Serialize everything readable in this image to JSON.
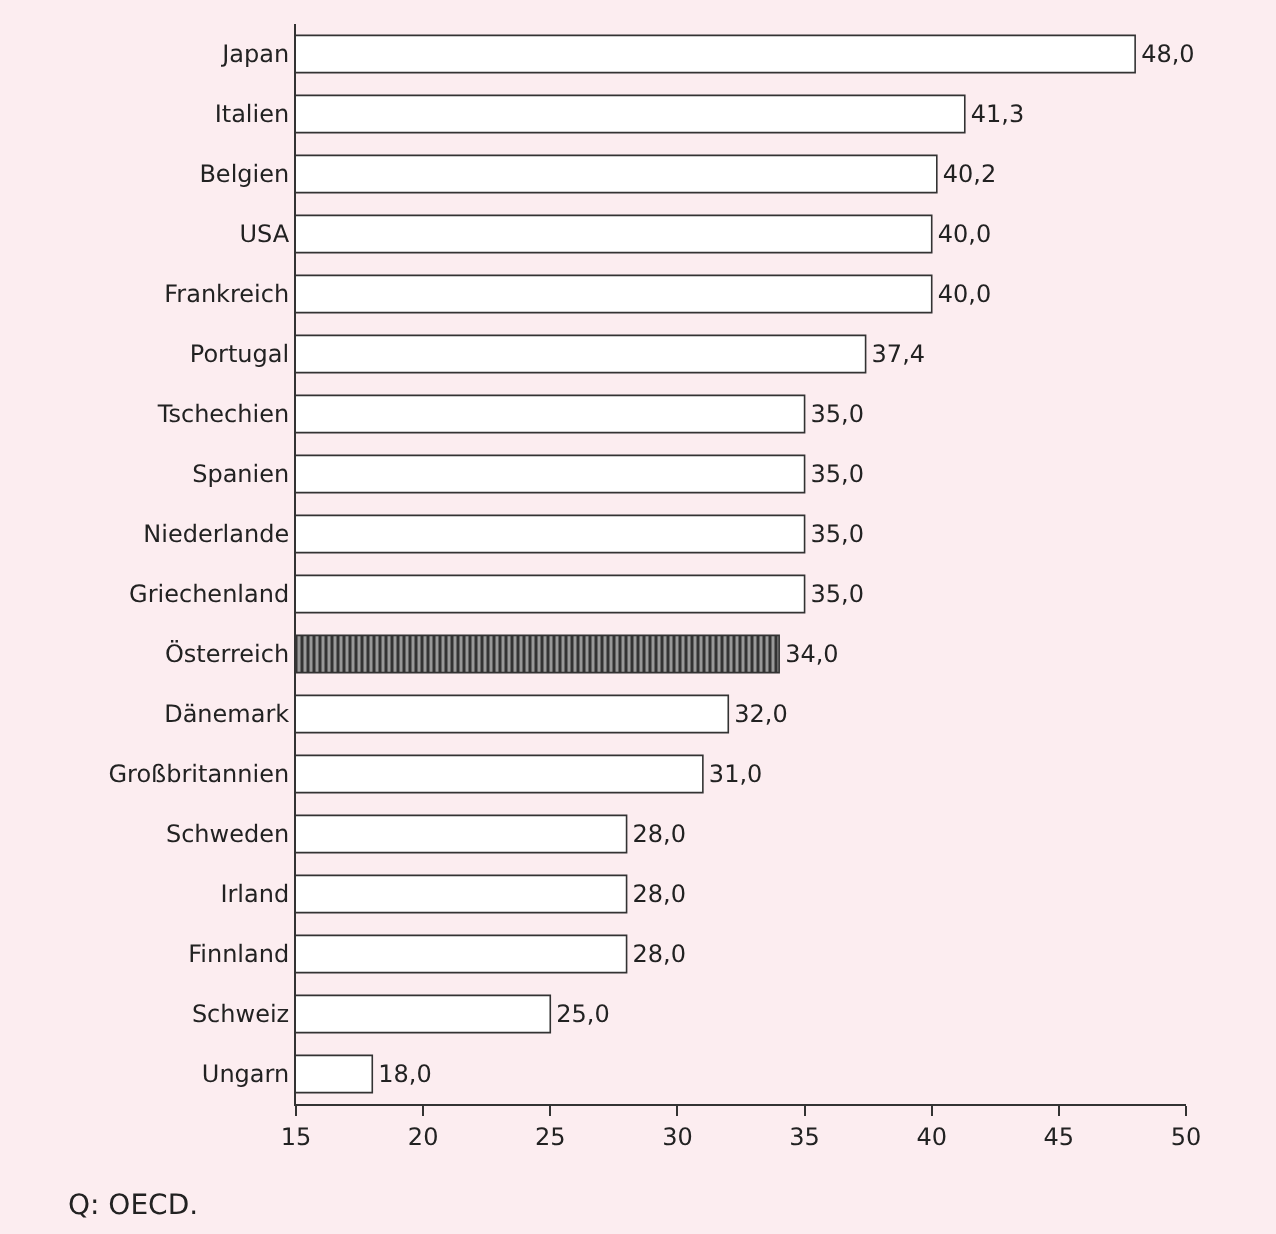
{
  "chart_data": {
    "type": "bar",
    "orientation": "horizontal",
    "categories": [
      "Japan",
      "Italien",
      "Belgien",
      "USA",
      "Frankreich",
      "Portugal",
      "Tschechien",
      "Spanien",
      "Niederlande",
      "Griechenland",
      "Österreich",
      "Dänemark",
      "Großbritannien",
      "Schweden",
      "Irland",
      "Finnland",
      "Schweiz",
      "Ungarn"
    ],
    "values": [
      48.0,
      41.3,
      40.2,
      40.0,
      40.0,
      37.4,
      35.0,
      35.0,
      35.0,
      35.0,
      34.0,
      32.0,
      31.0,
      28.0,
      28.0,
      28.0,
      25.0,
      18.0
    ],
    "value_labels": [
      "48,0",
      "41,3",
      "40,2",
      "40,0",
      "40,0",
      "37,4",
      "35,0",
      "35,0",
      "35,0",
      "35,0",
      "34,0",
      "32,0",
      "31,0",
      "28,0",
      "28,0",
      "28,0",
      "25,0",
      "18,0"
    ],
    "colors": [
      "#ffffff",
      "#ffffff",
      "#ffffff",
      "#ffffff",
      "#ffffff",
      "#ffffff",
      "#ffffff",
      "#ffffff",
      "#ffffff",
      "#ffffff",
      "#333333",
      "#ffffff",
      "#ffffff",
      "#ffffff",
      "#ffffff",
      "#ffffff",
      "#ffffff",
      "#ffffff"
    ],
    "xlim": [
      15,
      50
    ],
    "xticks": [
      15,
      20,
      25,
      30,
      35,
      40,
      45,
      50
    ],
    "grid": false,
    "legend": false,
    "annotations": [
      "Q: OECD."
    ]
  }
}
